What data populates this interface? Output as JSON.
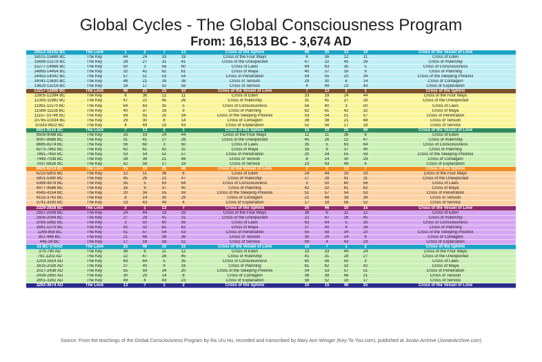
{
  "title": "Global Cycles - The Global Consciousness Program",
  "subtitle": "From: 16,513 BC - 3,674 AD",
  "source": "Source: From the teachings of the Global Consciousness Program by Ra Uru Hu, recorded and transcribed by Mary Ann Winiger (Key-To-You.com), published at Jovian Archive (JovianArchive.com)",
  "header_colors": [
    "#1aa3c4",
    "#7a4f28",
    "#2e8b5c",
    "#f08a1e",
    "#8e2a6e",
    "#1aa3c4",
    "#2a2a8c"
  ],
  "body_colors": [
    "#bfeef5",
    "#fbf59a",
    "#cbf0b5",
    "#fcd2a4",
    "#d7a6f2",
    "#cbf0b5"
  ],
  "sections": [
    {
      "header": [
        "16513-16102 BC",
        "The Lock",
        "1",
        "2",
        "7",
        "13",
        "Cross of the Sphinx",
        "46",
        "25",
        "15",
        "10",
        "Cross of the Vessel of Love"
      ],
      "rows": [
        [
          "16101-15688 BC",
          "The Key",
          "44",
          "24",
          "33",
          "19",
          "Cross of the Four Ways",
          "6",
          "36",
          "12",
          "11",
          "Cross of Eden"
        ],
        [
          "15689-15278 BC",
          "The Key",
          "28",
          "27",
          "31",
          "41",
          "Cross of the Unexpected",
          "47",
          "22",
          "45",
          "26",
          "Cross of Rulership"
        ],
        [
          "15277-14866 BC",
          "The Key",
          "50",
          "3",
          "56",
          "60",
          "Cross of Laws",
          "64",
          "63",
          "35",
          "5",
          "Cross of Consciousness"
        ],
        [
          "14865-14454 BC",
          "The Key",
          "32",
          "42",
          "62",
          "61",
          "Cross of Maya",
          "40",
          "37",
          "16",
          "9",
          "Cross of Planning"
        ],
        [
          "14453-14042 BC",
          "The Key",
          "57",
          "51",
          "53",
          "54",
          "Cross of Penetration",
          "59",
          "55",
          "20",
          "34",
          "Cross of the Sleeping Phoenix"
        ],
        [
          "14041-13630 BC",
          "The Key",
          "48",
          "21",
          "39",
          "38",
          "Cross of Tension",
          "29",
          "30",
          "8",
          "14",
          "Cross of Contagion"
        ],
        [
          "13629-13218 BC",
          "The Key",
          "18",
          "17",
          "52",
          "58",
          "Cross of Service",
          "4",
          "49",
          "23",
          "43",
          "Cross of Explanation"
        ]
      ]
    },
    {
      "header": [
        "13217-12806 BC",
        "The Lock",
        "46",
        "25",
        "15",
        "10",
        "Cross of the Vessel of Love",
        "7",
        "13",
        "2",
        "1",
        "Cross of the Sphinx"
      ],
      "rows": [
        [
          "12805-12394 BC",
          "The Key",
          "6",
          "36",
          "12",
          "11",
          "Cross of Eden",
          "33",
          "19",
          "24",
          "44",
          "Cross of the Four Ways"
        ],
        [
          "12393-11982 BC",
          "The Key",
          "47",
          "22",
          "45",
          "26",
          "Cross of Rulership",
          "31",
          "41",
          "27",
          "28",
          "Cross of the Unexpected"
        ],
        [
          "11981-11570 BC",
          "The Key",
          "64",
          "63",
          "35",
          "5",
          "Cross of Consciousness",
          "56",
          "60",
          "3",
          "50",
          "Cross of Laws"
        ],
        [
          "11569-11158 BC",
          "The Key",
          "40",
          "37",
          "16",
          "9",
          "Cross of Planning",
          "62",
          "61",
          "42",
          "32",
          "Cross of Maya"
        ],
        [
          "11157-10746 BC",
          "The Key",
          "59",
          "55",
          "20",
          "34",
          "Cross of the Sleeping Phoenix",
          "53",
          "54",
          "51",
          "57",
          "Cross of Penetration"
        ],
        [
          "10745-10334 BC",
          "The Key",
          "29",
          "30",
          "8",
          "14",
          "Cross of Contagion",
          "39",
          "38",
          "21",
          "48",
          "Cross of Tension"
        ],
        [
          "10333-9922 BC",
          "The Key",
          "4",
          "49",
          "23",
          "43",
          "Cross of Explanation",
          "52",
          "58",
          "17",
          "18",
          "Cross of Service"
        ]
      ]
    },
    {
      "header": [
        "9921-9510 BC",
        "The Lock",
        "7",
        "13",
        "2",
        "1",
        "Cross of the Sphinx",
        "15",
        "10",
        "25",
        "46",
        "Cross of the Vessel of Love"
      ],
      "rows": [
        [
          "9509-9098 BC",
          "The Key",
          "33",
          "19",
          "24",
          "44",
          "Cross of the Four Ways",
          "12",
          "11",
          "36",
          "6",
          "Cross of Eden"
        ],
        [
          "9097-8686 BC",
          "The Key",
          "31",
          "41",
          "27",
          "28",
          "Cross of the Unexpected",
          "45",
          "26",
          "22",
          "47",
          "Cross of Rulership"
        ],
        [
          "8685-8274 BC",
          "The Key",
          "56",
          "60",
          "3",
          "50",
          "Cross of Laws",
          "35",
          "5",
          "63",
          "64",
          "Cross of Consciousness"
        ],
        [
          "8273-7862 BC",
          "The Key",
          "62",
          "61",
          "42",
          "32",
          "Cross of Maya",
          "16",
          "9",
          "37",
          "40",
          "Cross of Planning"
        ],
        [
          "7861-7450 BC",
          "The Key",
          "53",
          "54",
          "51",
          "57",
          "Cross of Penetration",
          "20",
          "34",
          "55",
          "59",
          "Cross of the Sleeping Phoenix"
        ],
        [
          "7449-7038 BC",
          "The Key",
          "39",
          "38",
          "21",
          "48",
          "Cross of Tension",
          "8",
          "14",
          "30",
          "29",
          "Cross of Contagion"
        ],
        [
          "7037-6626 BC",
          "The Key",
          "52",
          "58",
          "17",
          "18",
          "Cross of Service",
          "23",
          "43",
          "49",
          "4",
          "Cross of Explanation"
        ]
      ]
    },
    {
      "header": [
        "6625-6214 BC",
        "The Lock",
        "15",
        "10",
        "25",
        "46",
        "Cross of the Vessel of Love",
        "2",
        "1",
        "13",
        "7",
        "Cross of the Sphinx"
      ],
      "rows": [
        [
          "6213-5802 BC",
          "The Key",
          "12",
          "11",
          "36",
          "6",
          "Cross of Eden",
          "24",
          "44",
          "19",
          "33",
          "Cross of the Four Ways"
        ],
        [
          "5801-5390 BC",
          "The Key",
          "45",
          "26",
          "22",
          "47",
          "Cross of Rulership",
          "27",
          "28",
          "41",
          "31",
          "Cross of the Unexpected"
        ],
        [
          "5389-4978 BC",
          "The Key",
          "35",
          "5",
          "63",
          "64",
          "Cross of Consciousness",
          "3",
          "50",
          "60",
          "56",
          "Cross of Laws"
        ],
        [
          "4977-4566 BC",
          "The Key",
          "16",
          "9",
          "37",
          "40",
          "Cross of Planning",
          "42",
          "32",
          "61",
          "62",
          "Cross of Maya"
        ],
        [
          "4565-4154 BC",
          "The Key",
          "20",
          "34",
          "55",
          "59",
          "Cross of the Sleeping Phoenix",
          "51",
          "57",
          "54",
          "53",
          "Cross of Penetration"
        ],
        [
          "4153-3742 BC",
          "The Key",
          "8",
          "14",
          "30",
          "29",
          "Cross of Contagion",
          "21",
          "48",
          "38",
          "39",
          "Cross of Tension"
        ],
        [
          "3741-3330 BC",
          "The Key",
          "23",
          "43",
          "49",
          "4",
          "Cross of Explanation",
          "17",
          "18",
          "58",
          "52",
          "Cross of Service"
        ]
      ]
    },
    {
      "header": [
        "3329-2928 BC",
        "The Lock",
        "2",
        "1",
        "13",
        "7",
        "Cross of the Sphinx",
        "25",
        "46",
        "10",
        "15",
        "Cross of the Vessel of Love"
      ],
      "rows": [
        [
          "2927-2506 BC",
          "The Key",
          "24",
          "44",
          "19",
          "33",
          "Cross of the Four Ways",
          "36",
          "6",
          "11",
          "12",
          "Cross of Eden"
        ],
        [
          "2505-2094 BC",
          "The Key",
          "27",
          "28",
          "41",
          "31",
          "Cross of the Unexpected",
          "22",
          "47",
          "26",
          "45",
          "Cross of Rulership"
        ],
        [
          "2093-1682 BC",
          "The Key",
          "3",
          "50",
          "60",
          "56",
          "Cross of Laws",
          "63",
          "64",
          "5",
          "35",
          "Cross of Consciousness"
        ],
        [
          "1681-1270 BC",
          "The Key",
          "42",
          "32",
          "61",
          "62",
          "Cross of Maya",
          "37",
          "40",
          "9",
          "16",
          "Cross of Planning"
        ],
        [
          "1269-858 BC",
          "The Key",
          "51",
          "57",
          "54",
          "53",
          "Cross of Penetration",
          "55",
          "59",
          "34",
          "20",
          "Cross of the Sleeping Phoenix"
        ],
        [
          "857-446 BC",
          "The Key",
          "21",
          "48",
          "38",
          "39",
          "Cross of Tension",
          "30",
          "29",
          "14",
          "8",
          "Cross of Contagion"
        ],
        [
          "445-34 BC",
          "The Key",
          "17",
          "18",
          "58",
          "52",
          "Cross of Service",
          "49",
          "4",
          "43",
          "23",
          "Cross of Explanation"
        ]
      ]
    },
    {
      "header": [
        "33 BC-378AD",
        "The Lock",
        "25",
        "46",
        "10",
        "15",
        "Cross of the Vessel of Love",
        "13",
        "7",
        "1",
        "2",
        "Cross of the Sphinx"
      ],
      "rows": [
        [
          "379-790 AD",
          "The Key",
          "36",
          "6",
          "11",
          "12",
          "Cross of Eden",
          "19",
          "33",
          "44",
          "24",
          "Cross of the Four Ways"
        ],
        [
          "791-1202 AD",
          "The Key",
          "22",
          "47",
          "26",
          "45",
          "Cross of Rulership",
          "41",
          "31",
          "28",
          "27",
          "Cross of the Unexpected"
        ],
        [
          "1203-1614 AD",
          "The Key",
          "63",
          "64",
          "5",
          "35",
          "Cross of Consciousness",
          "60",
          "56",
          "50",
          "3",
          "Cross of Laws"
        ],
        [
          "1615-2026 AD",
          "The Key",
          "37",
          "40",
          "9",
          "16",
          "Cross of Planning",
          "61",
          "62",
          "32",
          "42",
          "Cross of Maya"
        ],
        [
          "2027-2438 AD",
          "The Key",
          "55",
          "59",
          "34",
          "20",
          "Cross of the Sleeping Phoenix",
          "54",
          "53",
          "57",
          "51",
          "Cross of Penetration"
        ],
        [
          "2439-2850 AD",
          "The Key",
          "30",
          "29",
          "14",
          "8",
          "Cross of Contagion",
          "38",
          "39",
          "48",
          "21",
          "Cross of Tension"
        ],
        [
          "2851-3262 AD",
          "The Key",
          "49",
          "4",
          "43",
          "23",
          "Cross of Explanation",
          "58",
          "52",
          "18",
          "17",
          "Cross of Service"
        ]
      ]
    }
  ],
  "final_row": [
    "3263-3674 AD",
    "The Lock",
    "13",
    "7",
    "1",
    "2",
    "Cross of the Sphinx",
    "10",
    "15",
    "46",
    "25",
    "Cross of the Vessel of Love"
  ]
}
